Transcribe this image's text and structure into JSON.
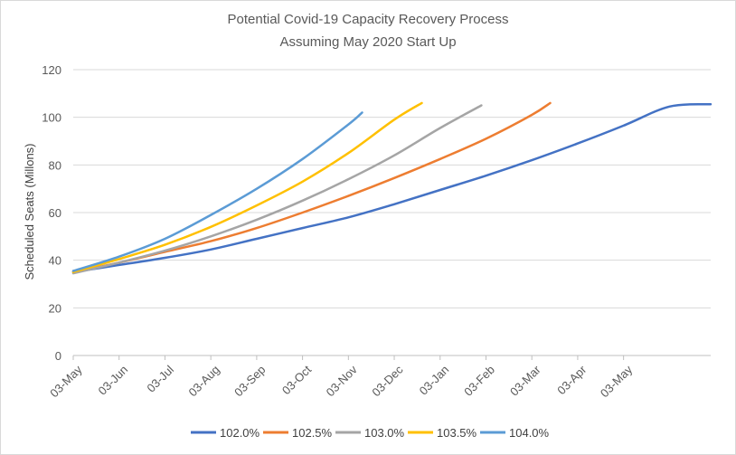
{
  "chart_data": {
    "type": "line",
    "title": [
      "Potential Covid-19 Capacity Recovery Process",
      "Assuming May 2020 Start Up"
    ],
    "xlabel": "",
    "ylabel": "Scheduled Seats (Millons)",
    "ylim": [
      0,
      120
    ],
    "yticks": [
      0,
      20,
      40,
      60,
      80,
      100,
      120
    ],
    "xlim": [
      0,
      13.9
    ],
    "categories": [
      "03-May",
      "03-Jun",
      "03-Jul",
      "03-Aug",
      "03-Sep",
      "03-Oct",
      "03-Nov",
      "03-Dec",
      "03-Jan",
      "03-Feb",
      "03-Mar",
      "03-Apr",
      "03-May"
    ],
    "grid": true,
    "legend_position": "bottom",
    "series": [
      {
        "name": "102.0%",
        "color": "#4472C4",
        "x": [
          0,
          1,
          2,
          3,
          4,
          5,
          6,
          7,
          8,
          9,
          10,
          11,
          12,
          13,
          13.9
        ],
        "values": [
          35.0,
          38.0,
          41.0,
          44.5,
          49.0,
          53.5,
          58.0,
          63.5,
          69.5,
          75.5,
          82.0,
          89.0,
          96.5,
          104.5,
          105.5
        ]
      },
      {
        "name": "102.5%",
        "color": "#ED7D31",
        "x": [
          0,
          1,
          2,
          3,
          4,
          5,
          6,
          7,
          8,
          9,
          10,
          10.4
        ],
        "values": [
          35.0,
          39.0,
          43.5,
          48.0,
          53.5,
          60.0,
          67.0,
          74.5,
          82.5,
          91.0,
          101.0,
          106.0
        ]
      },
      {
        "name": "103.0%",
        "color": "#A5A5A5",
        "x": [
          0,
          1,
          2,
          3,
          4,
          5,
          6,
          7,
          8,
          8.9
        ],
        "values": [
          34.5,
          39.0,
          44.0,
          50.0,
          57.0,
          65.0,
          74.0,
          84.0,
          95.5,
          105.0
        ]
      },
      {
        "name": "103.5%",
        "color": "#FFC000",
        "x": [
          0,
          1,
          2,
          3,
          4,
          5,
          6,
          7,
          7.6
        ],
        "values": [
          35.0,
          40.5,
          46.5,
          54.0,
          63.0,
          73.0,
          85.0,
          99.0,
          106.0
        ]
      },
      {
        "name": "104.0%",
        "color": "#5B9BD5",
        "x": [
          0,
          1,
          2,
          3,
          4,
          5,
          6,
          6.3
        ],
        "values": [
          35.5,
          41.5,
          49.0,
          59.0,
          70.0,
          82.5,
          97.0,
          102.0
        ]
      }
    ]
  }
}
